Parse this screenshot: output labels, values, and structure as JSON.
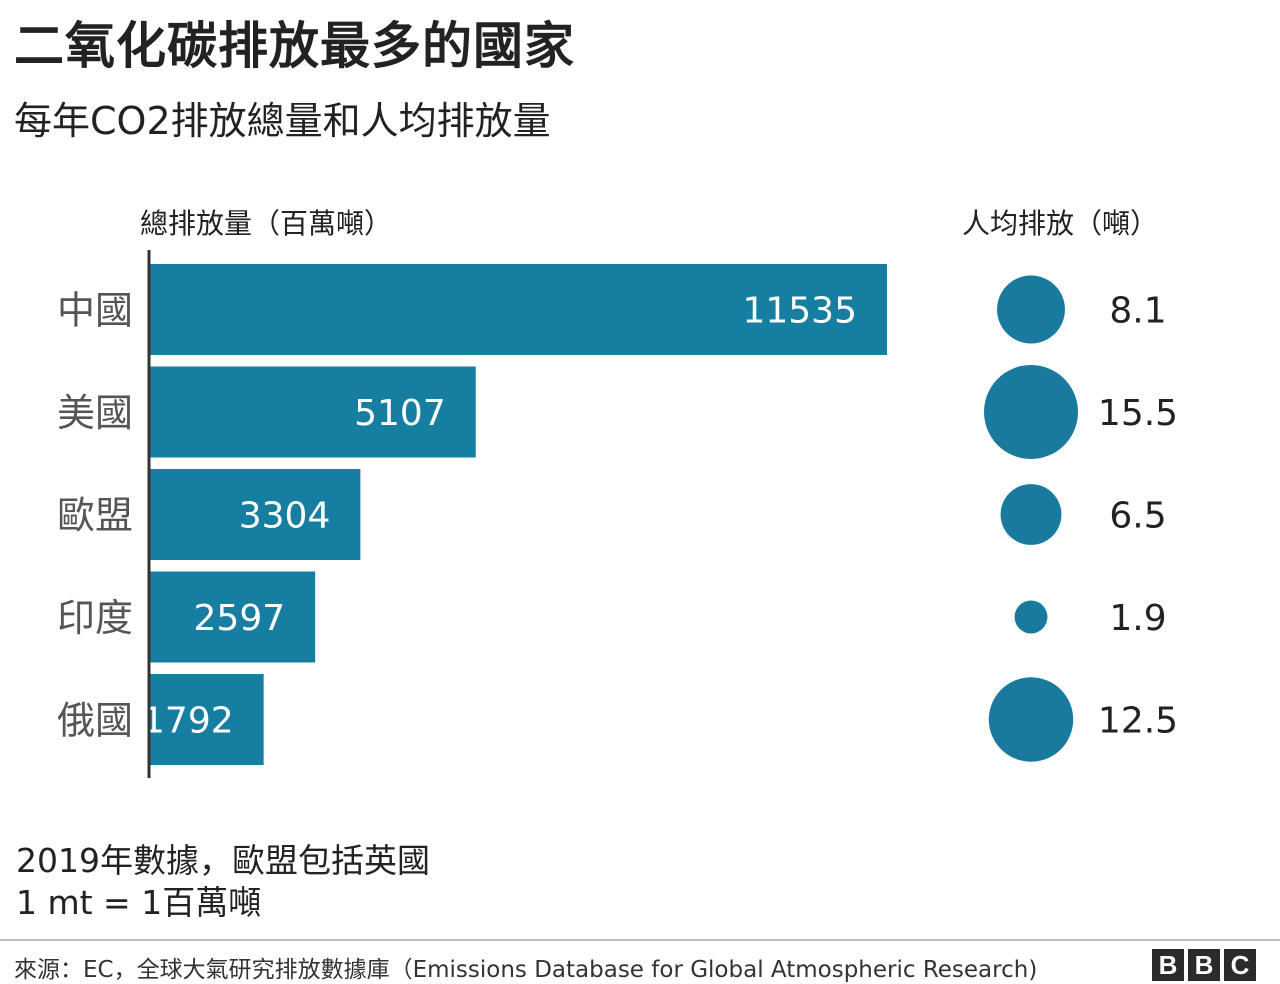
{
  "title": "二氧化碳排放最多的國家",
  "subtitle": "每年CO2排放總量和人均排放量",
  "colors": {
    "bar": "#167ea0",
    "bubble": "#1a7a9e",
    "axis": "#333333",
    "category_label": "#555555",
    "inside_label": "#ffffff",
    "outside_label": "#222222"
  },
  "chart_data": [
    {
      "type": "bar",
      "orientation": "horizontal",
      "title": "總排放量（百萬噸）",
      "categories": [
        "中國",
        "美國",
        "歐盟",
        "印度",
        "俄國"
      ],
      "values": [
        11535,
        5107,
        3304,
        2597,
        1792
      ],
      "value_labels": [
        "11535",
        "5107",
        "3304",
        "2597",
        "1792"
      ],
      "unit": "百萬噸",
      "xlim": [
        0,
        11535
      ],
      "grid": false
    },
    {
      "type": "scatter",
      "encoding": "bubble-size",
      "title": "人均排放（噸）",
      "categories": [
        "中國",
        "美國",
        "歐盟",
        "印度",
        "俄國"
      ],
      "values": [
        8.1,
        15.5,
        6.5,
        1.9,
        12.5
      ],
      "value_labels": [
        "8.1",
        "15.5",
        "6.5",
        "1.9",
        "12.5"
      ],
      "unit": "噸"
    }
  ],
  "notes": {
    "line1": "2019年數據，歐盟包括英國",
    "line2": "1 mt = 1百萬噸"
  },
  "source": "來源：EC，全球大氣研究排放數據庫（Emissions Database for Global Atmospheric Research)",
  "logo": {
    "letters": [
      "B",
      "B",
      "C"
    ]
  }
}
